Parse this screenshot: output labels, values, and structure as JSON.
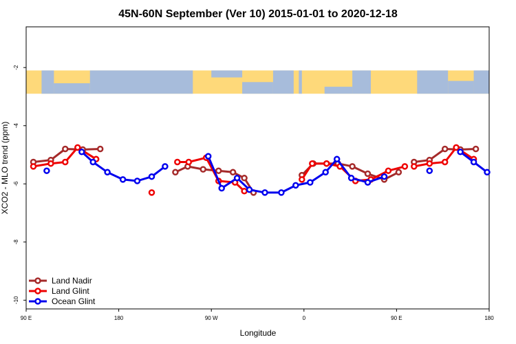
{
  "chart_data": {
    "type": "line",
    "title": "45N-60N September (Ver 10)   2015-01-01 to 2020-12-18",
    "xlabel": "Longitude",
    "ylabel": "XCO2 - MLO trend (ppm)",
    "x_ticks": [
      {
        "value": 90,
        "label": "90 E"
      },
      {
        "value": 180,
        "label": "180"
      },
      {
        "value": 270,
        "label": "90 W"
      },
      {
        "value": 360,
        "label": "0"
      },
      {
        "value": 450,
        "label": "90 E"
      },
      {
        "value": 540,
        "label": "180"
      }
    ],
    "y_ticks": [
      {
        "value": -2,
        "label": "-2"
      },
      {
        "value": -4,
        "label": "-4"
      },
      {
        "value": -6,
        "label": "-6"
      },
      {
        "value": -8,
        "label": "-8"
      },
      {
        "value": -10,
        "label": "-10"
      }
    ],
    "xlim": [
      90,
      540
    ],
    "ylim": [
      -10.3,
      -0.6
    ],
    "map_band": {
      "description": "world map strip",
      "y_top": -2.1,
      "y_bottom": -2.9,
      "ocean_color": "#a7bcdb",
      "land_color": "#fed97a"
    },
    "legend_position": "bottom-left",
    "series": [
      {
        "name": "Land Nadir",
        "color": "#a52a2a",
        "points": [
          [
            97,
            -5.25
          ],
          [
            114,
            -5.18
          ],
          [
            128,
            -4.8
          ],
          [
            145,
            -4.82
          ],
          [
            162,
            -4.8
          ],
          [
            null,
            null
          ],
          [
            235,
            -5.6
          ],
          [
            247,
            -5.4
          ],
          [
            262,
            -5.5
          ],
          [
            277,
            -5.55
          ],
          [
            291,
            -5.6
          ],
          [
            302,
            -5.8
          ],
          [
            311,
            -6.3
          ],
          [
            null,
            null
          ],
          [
            358,
            -5.7
          ],
          [
            369,
            -5.3
          ],
          [
            382,
            -5.3
          ],
          [
            393,
            -5.3
          ],
          [
            407,
            -5.4
          ],
          [
            422,
            -5.65
          ],
          [
            438,
            -5.85
          ],
          [
            452,
            -5.6
          ],
          [
            null,
            null
          ],
          [
            467,
            -5.25
          ],
          [
            482,
            -5.18
          ],
          [
            497,
            -4.8
          ],
          [
            512,
            -4.82
          ],
          [
            527,
            -4.8
          ]
        ]
      },
      {
        "name": "Land Glint",
        "color": "#ee0000",
        "points": [
          [
            97,
            -5.4
          ],
          [
            114,
            -5.3
          ],
          [
            128,
            -5.25
          ],
          [
            140,
            -4.75
          ],
          [
            158,
            -5.15
          ],
          [
            null,
            null
          ],
          [
            212,
            -6.3
          ],
          [
            null,
            null
          ],
          [
            237,
            -5.25
          ],
          [
            248,
            -5.25
          ],
          [
            265,
            -5.1
          ],
          [
            277,
            -5.9
          ],
          [
            293,
            -5.95
          ],
          [
            302,
            -6.25
          ],
          [
            null,
            null
          ],
          [
            358,
            -5.85
          ],
          [
            368,
            -5.3
          ],
          [
            382,
            -5.3
          ],
          [
            395,
            -5.4
          ],
          [
            410,
            -5.9
          ],
          [
            425,
            -5.85
          ],
          [
            442,
            -5.55
          ],
          [
            458,
            -5.4
          ],
          [
            null,
            null
          ],
          [
            467,
            -5.4
          ],
          [
            482,
            -5.3
          ],
          [
            497,
            -5.25
          ],
          [
            508,
            -4.75
          ],
          [
            525,
            -5.15
          ]
        ]
      },
      {
        "name": "Ocean Glint",
        "color": "#0000ee",
        "points": [
          [
            110,
            -5.55
          ],
          [
            null,
            null
          ],
          [
            144,
            -4.9
          ],
          [
            155,
            -5.25
          ],
          [
            169,
            -5.6
          ],
          [
            184,
            -5.85
          ],
          [
            198,
            -5.9
          ],
          [
            212,
            -5.75
          ],
          [
            225,
            -5.4
          ],
          [
            null,
            null
          ],
          [
            267,
            -5.05
          ],
          [
            280,
            -6.15
          ],
          [
            295,
            -5.8
          ],
          [
            307,
            -6.2
          ],
          [
            322,
            -6.3
          ],
          [
            338,
            -6.3
          ],
          [
            352,
            -6.05
          ],
          [
            366,
            -5.95
          ],
          [
            381,
            -5.6
          ],
          [
            392,
            -5.15
          ],
          [
            406,
            -5.8
          ],
          [
            422,
            -5.95
          ],
          [
            438,
            -5.75
          ],
          [
            null,
            null
          ],
          [
            482,
            -5.55
          ],
          [
            null,
            null
          ],
          [
            512,
            -4.9
          ],
          [
            525,
            -5.25
          ],
          [
            538,
            -5.6
          ]
        ]
      }
    ]
  }
}
